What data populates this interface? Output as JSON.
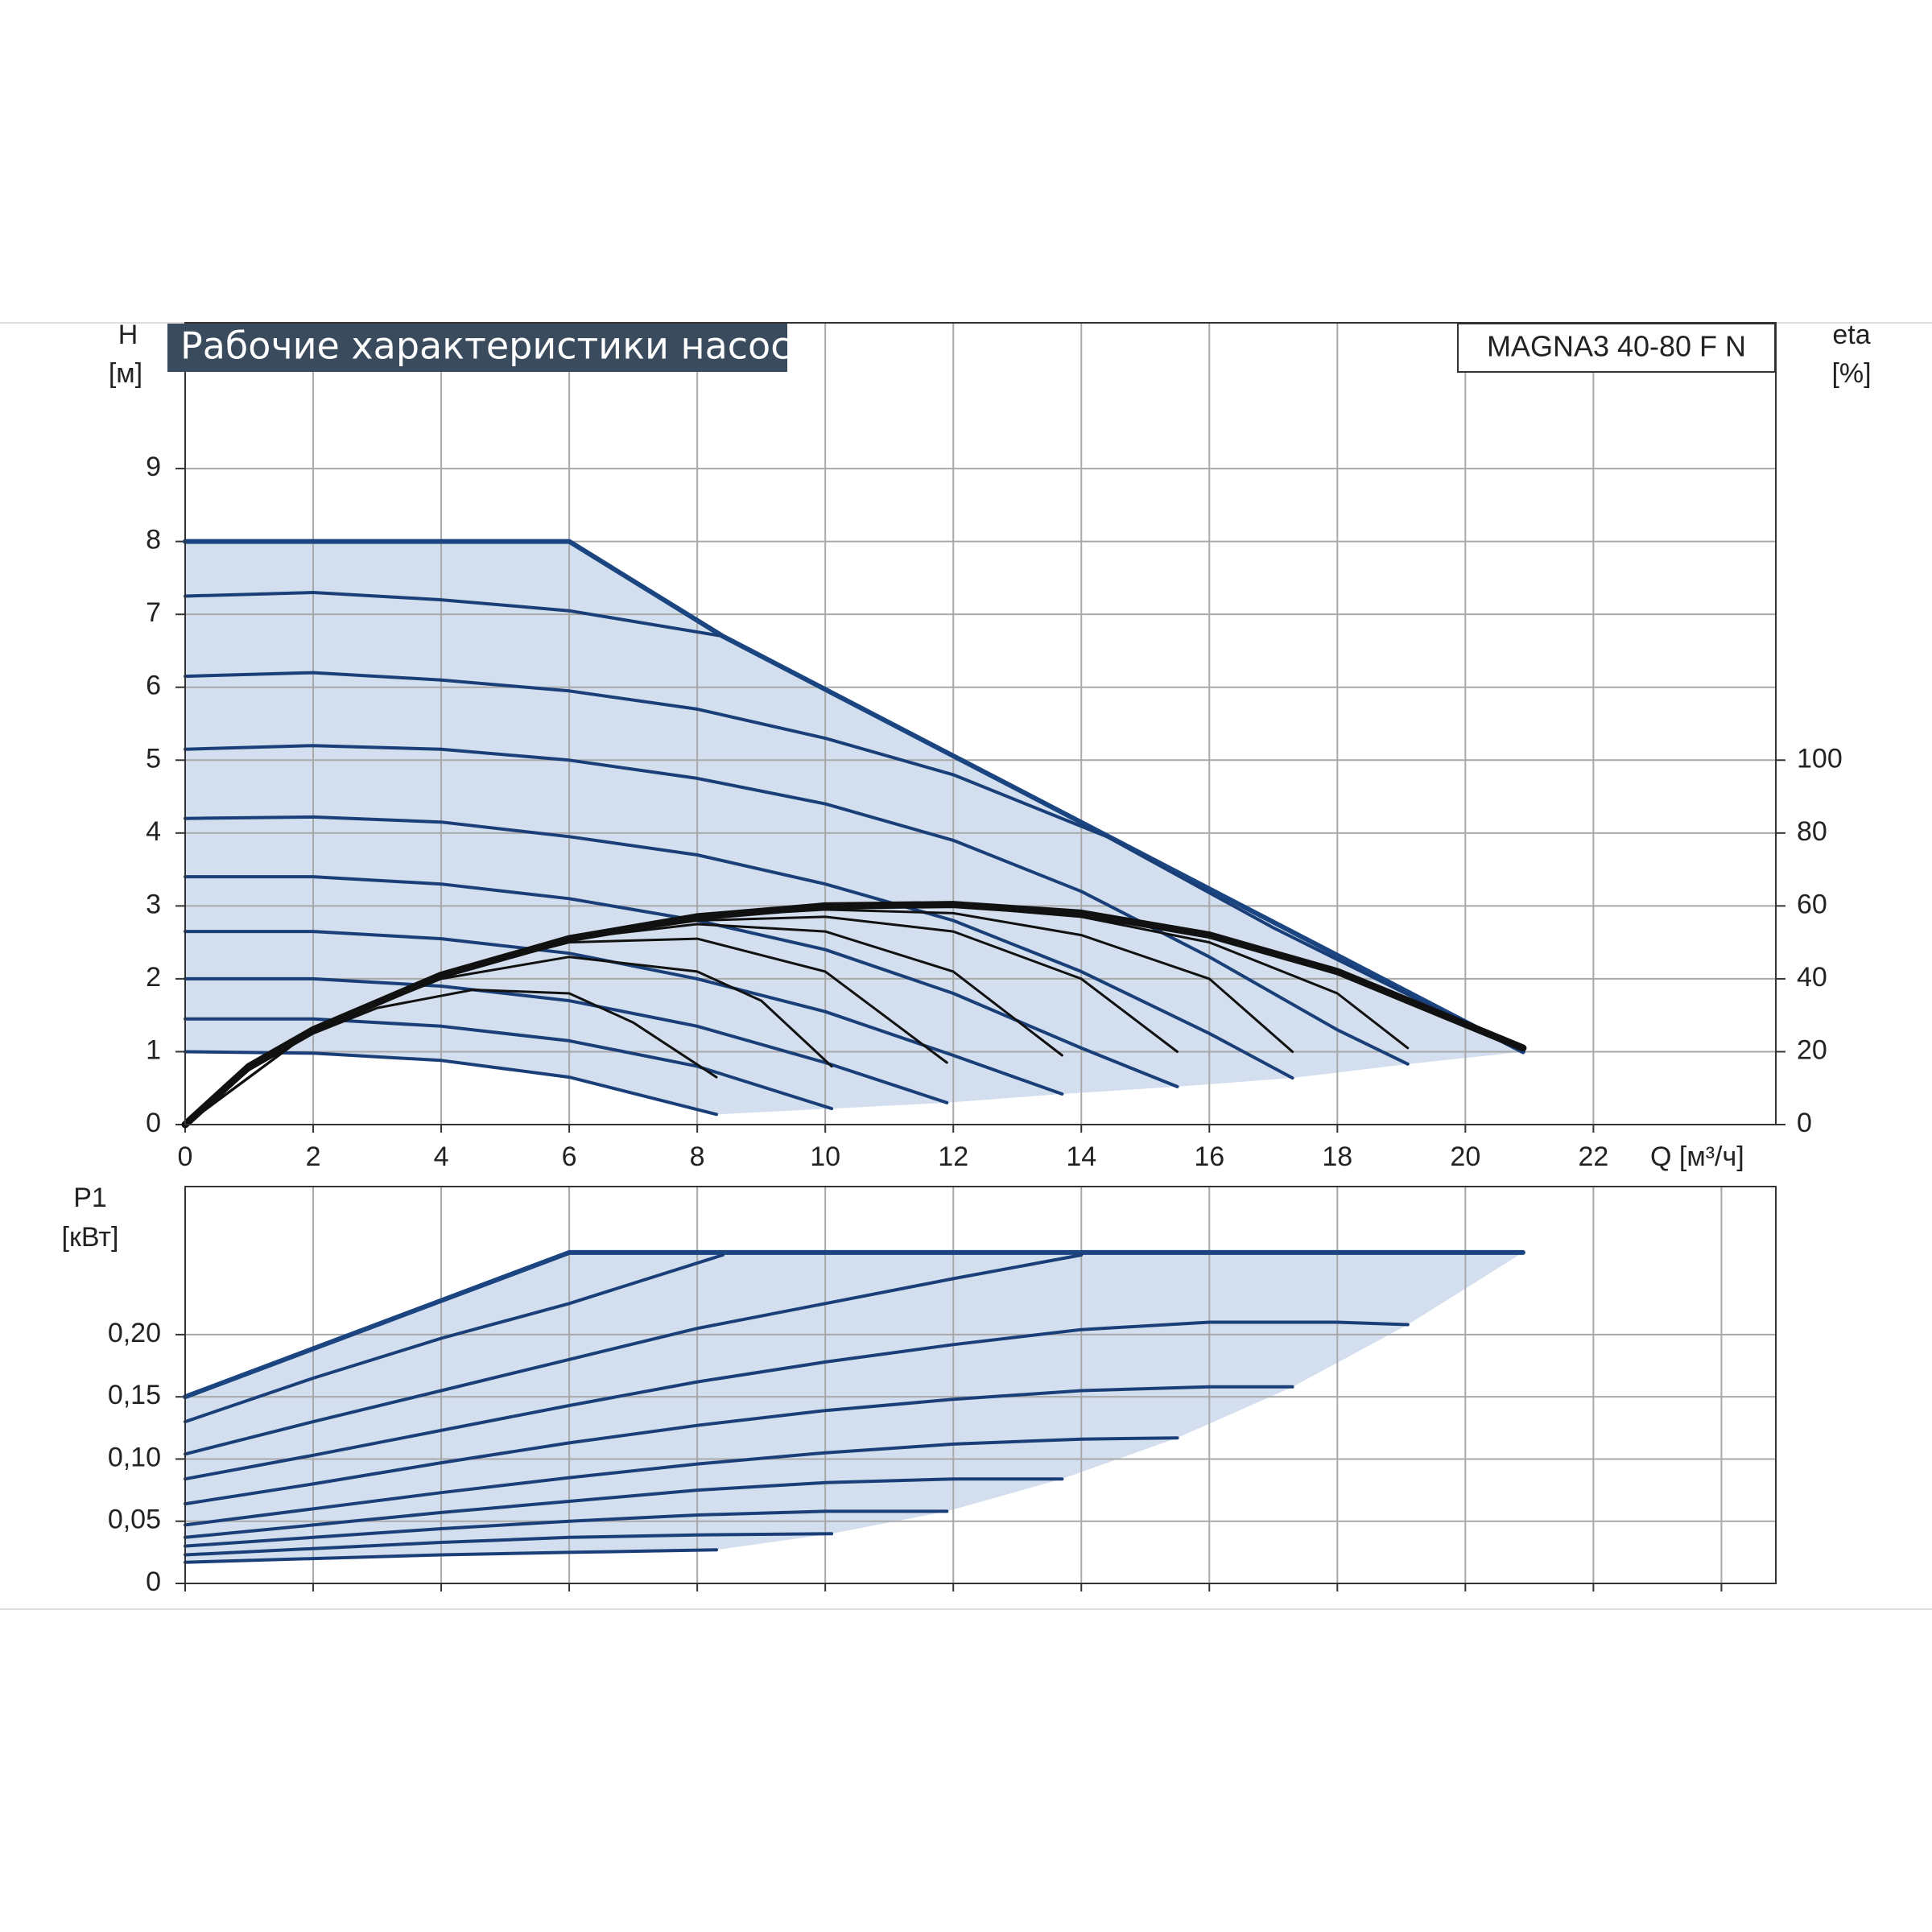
{
  "chart_data": [
    {
      "type": "line",
      "title": "Рабочие характеристики насоса",
      "subtitle": "MAGNA3 40-80 F N",
      "ylabel": [
        "H",
        "[м]"
      ],
      "y2label": [
        "eta",
        "[%]"
      ],
      "xlabel": "Q [м³/ч]",
      "xlim": [
        0,
        24.85
      ],
      "xticks": [
        0,
        2,
        4,
        6,
        8,
        10,
        12,
        14,
        16,
        18,
        20,
        22
      ],
      "ylim": [
        0,
        11
      ],
      "yticks": [
        0,
        1,
        2,
        3,
        4,
        5,
        6,
        7,
        8,
        9
      ],
      "y2lim": [
        0,
        220
      ],
      "y2ticks": [
        0,
        20,
        40,
        60,
        80,
        100
      ],
      "grid": true,
      "area_color": "#d3dfee",
      "series": [
        {
          "color": "#1a4580",
          "x": [
            0,
            6,
            8.4,
            20.9
          ],
          "values": [
            8,
            8,
            6.7,
            1
          ]
        },
        {
          "color": "#1a3f78",
          "x": [
            0,
            2,
            4,
            6,
            8.4
          ],
          "values": [
            7.25,
            7.3,
            7.2,
            7.05,
            6.7
          ]
        },
        {
          "color": "#1a3f78",
          "x": [
            0,
            2,
            4,
            6,
            8,
            10,
            12,
            14.4,
            17,
            20.9
          ],
          "values": [
            6.15,
            6.2,
            6.1,
            5.95,
            5.7,
            5.3,
            4.8,
            3.95,
            2.7,
            1.0
          ]
        },
        {
          "color": "#1a3f78",
          "x": [
            0,
            2,
            4,
            6,
            8,
            10,
            12,
            14,
            16,
            18,
            19.1
          ],
          "values": [
            5.15,
            5.2,
            5.15,
            5.0,
            4.75,
            4.4,
            3.9,
            3.2,
            2.3,
            1.3,
            0.83
          ]
        },
        {
          "color": "#1a3f78",
          "x": [
            0,
            2,
            4,
            6,
            8,
            10,
            12,
            14,
            16,
            17.3
          ],
          "values": [
            4.2,
            4.22,
            4.15,
            3.95,
            3.7,
            3.3,
            2.8,
            2.1,
            1.25,
            0.64
          ]
        },
        {
          "color": "#1a3f78",
          "x": [
            0,
            2,
            4,
            6,
            8,
            10,
            12,
            14,
            15.5
          ],
          "values": [
            3.4,
            3.4,
            3.3,
            3.1,
            2.8,
            2.4,
            1.8,
            1.05,
            0.52
          ]
        },
        {
          "color": "#1a3f78",
          "x": [
            0,
            2,
            4,
            6,
            8,
            10,
            12,
            13.7
          ],
          "values": [
            2.65,
            2.65,
            2.55,
            2.35,
            2.0,
            1.55,
            0.95,
            0.42
          ]
        },
        {
          "color": "#1a3f78",
          "x": [
            0,
            2,
            4,
            6,
            8,
            10,
            11.9
          ],
          "values": [
            2.0,
            2.0,
            1.9,
            1.7,
            1.35,
            0.85,
            0.3
          ]
        },
        {
          "color": "#1a3f78",
          "x": [
            0,
            2,
            4,
            6,
            8,
            10.1
          ],
          "values": [
            1.45,
            1.45,
            1.35,
            1.15,
            0.8,
            0.22
          ]
        },
        {
          "color": "#1a3f78",
          "x": [
            0,
            2,
            4,
            6,
            8.3
          ],
          "values": [
            1.0,
            0.98,
            0.88,
            0.65,
            0.14
          ]
        },
        {
          "color": "#111111",
          "axis": "y2",
          "x": [
            0,
            1,
            2,
            4,
            6,
            8,
            10,
            12,
            14,
            16,
            18,
            20.9
          ],
          "values": [
            0,
            16,
            26,
            41,
            51,
            57,
            60,
            60.4,
            58,
            52,
            42,
            21
          ]
        },
        {
          "color": "#111111",
          "axis": "y2",
          "x": [
            0,
            1,
            2,
            3,
            4.5,
            6,
            7,
            8.3
          ],
          "values": [
            0,
            15,
            25,
            32,
            37,
            36,
            28,
            13
          ]
        },
        {
          "color": "#111111",
          "axis": "y2",
          "x": [
            0,
            2,
            4,
            6,
            8,
            9,
            10.1
          ],
          "values": [
            0,
            26,
            40,
            46,
            42,
            34,
            16
          ]
        },
        {
          "color": "#111111",
          "axis": "y2",
          "x": [
            0,
            2,
            4,
            6,
            8,
            10,
            11.9
          ],
          "values": [
            0,
            26,
            41,
            50,
            51,
            42,
            17
          ]
        },
        {
          "color": "#111111",
          "axis": "y2",
          "x": [
            0,
            2,
            4,
            6,
            8,
            10,
            12,
            13.7
          ],
          "values": [
            0,
            26,
            41,
            51,
            55,
            53,
            42,
            19
          ]
        },
        {
          "color": "#111111",
          "axis": "y2",
          "x": [
            0,
            2,
            4,
            6,
            8,
            10,
            12,
            14,
            15.5
          ],
          "values": [
            0,
            26,
            41,
            51,
            56,
            57,
            53,
            40,
            20
          ]
        },
        {
          "color": "#111111",
          "axis": "y2",
          "x": [
            0,
            2,
            4,
            6,
            8,
            10,
            12,
            14,
            16,
            17.3
          ],
          "values": [
            0,
            26,
            41,
            51,
            57,
            59,
            58,
            52,
            40,
            20
          ]
        },
        {
          "color": "#111111",
          "axis": "y2",
          "x": [
            0,
            2,
            4,
            6,
            8,
            10,
            12,
            14,
            16,
            18,
            19.1
          ],
          "values": [
            0,
            26,
            41,
            51,
            57,
            60,
            60,
            57,
            50,
            36,
            21
          ]
        }
      ]
    },
    {
      "type": "line",
      "ylabel": [
        "P1",
        "[кВт]"
      ],
      "xlim": [
        0,
        24.85
      ],
      "xticks": [
        0,
        2,
        4,
        6,
        8,
        10,
        12,
        14,
        16,
        18,
        20,
        22,
        24
      ],
      "xtick_labels": false,
      "ylim": [
        0,
        0.319
      ],
      "yticks": [
        0,
        {
          "value": 0.05,
          "label": "0,05"
        },
        {
          "value": 0.1,
          "label": "0,10"
        },
        {
          "value": 0.15,
          "label": "0,15"
        },
        {
          "value": 0.2,
          "label": "0,20"
        }
      ],
      "grid": true,
      "area_color": "#d3dfee",
      "series": [
        {
          "color": "#1a4580",
          "x": [
            0,
            6,
            20.9
          ],
          "values": [
            0.15,
            0.266,
            0.266
          ]
        },
        {
          "color": "#1a3f78",
          "x": [
            0,
            2,
            4,
            6,
            8.4
          ],
          "values": [
            0.13,
            0.165,
            0.197,
            0.225,
            0.264
          ]
        },
        {
          "color": "#1a3f78",
          "x": [
            0,
            2,
            4,
            6,
            8,
            10,
            12,
            14
          ],
          "values": [
            0.104,
            0.13,
            0.155,
            0.18,
            0.205,
            0.225,
            0.245,
            0.264
          ]
        },
        {
          "color": "#1a3f78",
          "x": [
            0,
            2,
            4,
            6,
            8,
            10,
            12,
            14,
            16,
            18,
            19.1
          ],
          "values": [
            0.084,
            0.103,
            0.123,
            0.143,
            0.162,
            0.178,
            0.192,
            0.204,
            0.21,
            0.21,
            0.208
          ]
        },
        {
          "color": "#1a3f78",
          "x": [
            0,
            2,
            4,
            6,
            8,
            10,
            12,
            14,
            16,
            17.3
          ],
          "values": [
            0.064,
            0.08,
            0.097,
            0.113,
            0.127,
            0.139,
            0.148,
            0.155,
            0.158,
            0.158
          ]
        },
        {
          "color": "#1a3f78",
          "x": [
            0,
            2,
            4,
            6,
            8,
            10,
            12,
            14,
            15.5
          ],
          "values": [
            0.047,
            0.06,
            0.073,
            0.085,
            0.096,
            0.105,
            0.112,
            0.116,
            0.117
          ]
        },
        {
          "color": "#1a3f78",
          "x": [
            0,
            2,
            4,
            6,
            8,
            10,
            12,
            13.7
          ],
          "values": [
            0.037,
            0.047,
            0.057,
            0.066,
            0.075,
            0.081,
            0.084,
            0.084
          ]
        },
        {
          "color": "#1a3f78",
          "x": [
            0,
            2,
            4,
            6,
            8,
            10,
            11.9
          ],
          "values": [
            0.03,
            0.037,
            0.044,
            0.05,
            0.055,
            0.058,
            0.058
          ]
        },
        {
          "color": "#1a3f78",
          "x": [
            0,
            2,
            4,
            6,
            8,
            10.1
          ],
          "values": [
            0.023,
            0.028,
            0.033,
            0.037,
            0.039,
            0.04
          ]
        },
        {
          "color": "#1a3f78",
          "x": [
            0,
            2,
            4,
            6,
            8.3
          ],
          "values": [
            0.017,
            0.02,
            0.023,
            0.025,
            0.027
          ]
        }
      ]
    }
  ]
}
